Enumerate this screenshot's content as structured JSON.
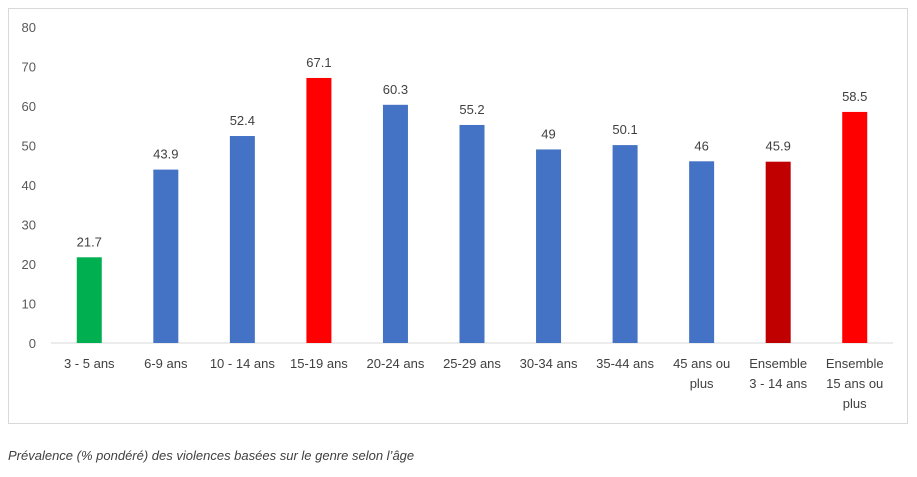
{
  "caption": "Prévalence (% pondéré) des violences basées sur le genre selon l’âge",
  "chart_data": {
    "type": "bar",
    "title": "",
    "xlabel": "",
    "ylabel": "",
    "ylim": [
      0,
      80
    ],
    "yticks": [
      0,
      10,
      20,
      30,
      40,
      50,
      60,
      70,
      80
    ],
    "grid": false,
    "categories": [
      [
        "3 - 5 ans"
      ],
      [
        "6-9 ans"
      ],
      [
        "10 - 14 ans"
      ],
      [
        "15-19 ans"
      ],
      [
        "20-24 ans"
      ],
      [
        "25-29 ans"
      ],
      [
        "30-34 ans"
      ],
      [
        "35-44 ans"
      ],
      [
        "45 ans ou",
        "plus"
      ],
      [
        "Ensemble",
        "3 - 14 ans"
      ],
      [
        "Ensemble",
        "15 ans ou",
        "plus"
      ]
    ],
    "values": [
      21.7,
      43.9,
      52.4,
      67.1,
      60.3,
      55.2,
      49,
      50.1,
      46,
      45.9,
      58.5
    ],
    "value_labels": [
      "21.7",
      "43.9",
      "52.4",
      "67.1",
      "60.3",
      "55.2",
      "49",
      "50.1",
      "46",
      "45.9",
      "58.5"
    ],
    "colors": [
      "#00b050",
      "#4472c4",
      "#4472c4",
      "#ff0000",
      "#4472c4",
      "#4472c4",
      "#4472c4",
      "#4472c4",
      "#4472c4",
      "#c00000",
      "#ff0000"
    ]
  }
}
